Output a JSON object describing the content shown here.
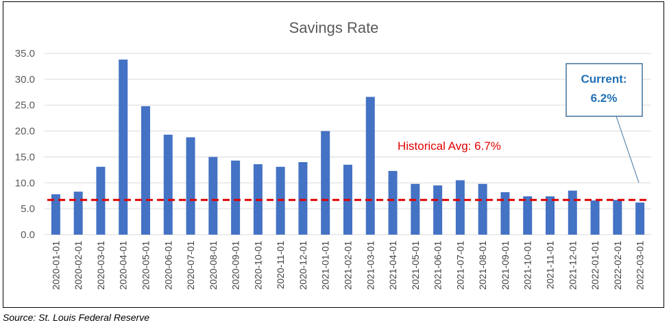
{
  "chart_data": {
    "type": "bar",
    "title": "Savings Rate",
    "categories": [
      "2020-01-01",
      "2020-02-01",
      "2020-03-01",
      "2020-04-01",
      "2020-05-01",
      "2020-06-01",
      "2020-07-01",
      "2020-08-01",
      "2020-09-01",
      "2020-10-01",
      "2020-11-01",
      "2020-12-01",
      "2021-01-01",
      "2021-02-01",
      "2021-03-01",
      "2021-04-01",
      "2021-05-01",
      "2021-06-01",
      "2021-07-01",
      "2021-08-01",
      "2021-09-01",
      "2021-10-01",
      "2021-11-01",
      "2021-12-01",
      "2022-01-01",
      "2022-02-01",
      "2022-03-01"
    ],
    "values": [
      7.8,
      8.3,
      13.1,
      33.8,
      24.8,
      19.3,
      18.8,
      15.0,
      14.3,
      13.6,
      13.1,
      14.0,
      20.0,
      13.5,
      26.6,
      12.3,
      9.8,
      9.5,
      10.5,
      9.8,
      8.2,
      7.4,
      7.4,
      8.5,
      6.6,
      6.7,
      6.2
    ],
    "ylim": [
      0,
      35
    ],
    "yticks": [
      "0.0",
      "5.0",
      "10.0",
      "15.0",
      "20.0",
      "25.0",
      "30.0",
      "35.0"
    ],
    "grid": true,
    "bar_color": "#4472c4",
    "reference_line": {
      "label": "Historical Avg:  6.7%",
      "value": 6.7,
      "color": "#e00000",
      "style": "dashed"
    },
    "callout": {
      "line1": "Current:",
      "line2": "6.2%",
      "text_color": "#1f6fb5",
      "border_color": "#41719c"
    }
  },
  "source": "Source:  St. Louis Federal Reserve"
}
